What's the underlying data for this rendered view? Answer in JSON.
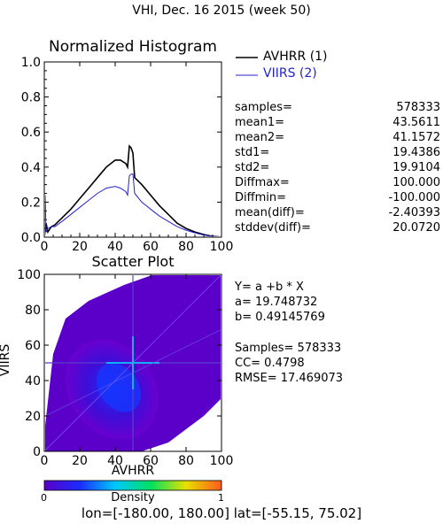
{
  "title": "VHI,  Dec. 16 2015 (week 50)",
  "footer": "lon=[-180.00, 180.00] lat=[-55.15, 75.02]",
  "stats": [
    {
      "key": "samples=",
      "value": "578333"
    },
    {
      "key": "mean1=",
      "value": "43.5611"
    },
    {
      "key": "mean2=",
      "value": "41.1572"
    },
    {
      "key": "std1=",
      "value": "19.4386"
    },
    {
      "key": "std2=",
      "value": "19.9104"
    },
    {
      "key": "Diffmax=",
      "value": "100.000"
    },
    {
      "key": "Diffmin=",
      "value": "-100.000"
    },
    {
      "key": "mean(diff)=",
      "value": "-2.40393"
    },
    {
      "key": "stddev(diff)=",
      "value": "20.0720"
    }
  ],
  "fit": {
    "equation": "Y= a +b * X",
    "a": "a= 19.748732",
    "b": "b= 0.49145769",
    "samples": "Samples= 578333",
    "cc": "CC=  0.4798",
    "rmse": "RMSE= 17.469073"
  },
  "colors": {
    "avhrr": "#000000",
    "viirs": "#2222cc",
    "crosshair": "#5a3fd0",
    "density_low": "#5b00c8",
    "density_high": "#ff5a1e"
  },
  "chart_data": [
    {
      "type": "line",
      "title": "Normalized Histogram",
      "xlim": [
        0,
        100
      ],
      "ylim": [
        0,
        1.0
      ],
      "xticks": [
        "0",
        "20",
        "40",
        "60",
        "80",
        "100"
      ],
      "yticks": [
        "0.0",
        "0.2",
        "0.4",
        "0.6",
        "0.8",
        "1.0"
      ],
      "legend_position": "top-right",
      "series": [
        {
          "name": "AVHRR (1)",
          "color": "#000000",
          "x": [
            0,
            1,
            2,
            4,
            6,
            10,
            15,
            20,
            25,
            30,
            35,
            40,
            43,
            46,
            47,
            48,
            49,
            50,
            51,
            55,
            60,
            65,
            70,
            75,
            80,
            85,
            90,
            95,
            98,
            100
          ],
          "y": [
            0.0,
            0.08,
            0.03,
            0.06,
            0.07,
            0.11,
            0.16,
            0.22,
            0.28,
            0.34,
            0.4,
            0.44,
            0.44,
            0.42,
            0.4,
            0.52,
            0.51,
            0.48,
            0.34,
            0.3,
            0.24,
            0.18,
            0.13,
            0.08,
            0.05,
            0.03,
            0.015,
            0.005,
            0.002,
            0.0
          ]
        },
        {
          "name": "VIIRS (2)",
          "color": "#2222cc",
          "x": [
            0,
            0.5,
            1,
            2,
            4,
            6,
            10,
            15,
            20,
            25,
            30,
            35,
            40,
            43,
            46,
            47,
            48,
            49,
            50,
            51,
            55,
            60,
            65,
            70,
            75,
            80,
            85,
            90,
            95,
            98,
            100
          ],
          "y": [
            0.0,
            0.24,
            0.03,
            0.05,
            0.06,
            0.06,
            0.09,
            0.13,
            0.17,
            0.21,
            0.25,
            0.28,
            0.29,
            0.28,
            0.26,
            0.24,
            0.35,
            0.36,
            0.36,
            0.25,
            0.2,
            0.16,
            0.12,
            0.09,
            0.06,
            0.04,
            0.025,
            0.012,
            0.005,
            0.002,
            0.0
          ]
        }
      ]
    },
    {
      "type": "heatmap",
      "title": "Scatter Plot",
      "xlabel": "AVHRR",
      "ylabel": "VIIRS",
      "xlim": [
        0,
        100
      ],
      "ylim": [
        0,
        100
      ],
      "xticks": [
        "0",
        "20",
        "40",
        "60",
        "80",
        "100"
      ],
      "yticks": [
        "0",
        "20",
        "40",
        "60",
        "80",
        "100"
      ],
      "fit": {
        "a": 19.748732,
        "b": 0.49145769
      },
      "crosshair": {
        "x": 50,
        "y": 50
      },
      "colorbar": {
        "label": "Density",
        "min_label": "0",
        "max_label": "1"
      }
    }
  ]
}
